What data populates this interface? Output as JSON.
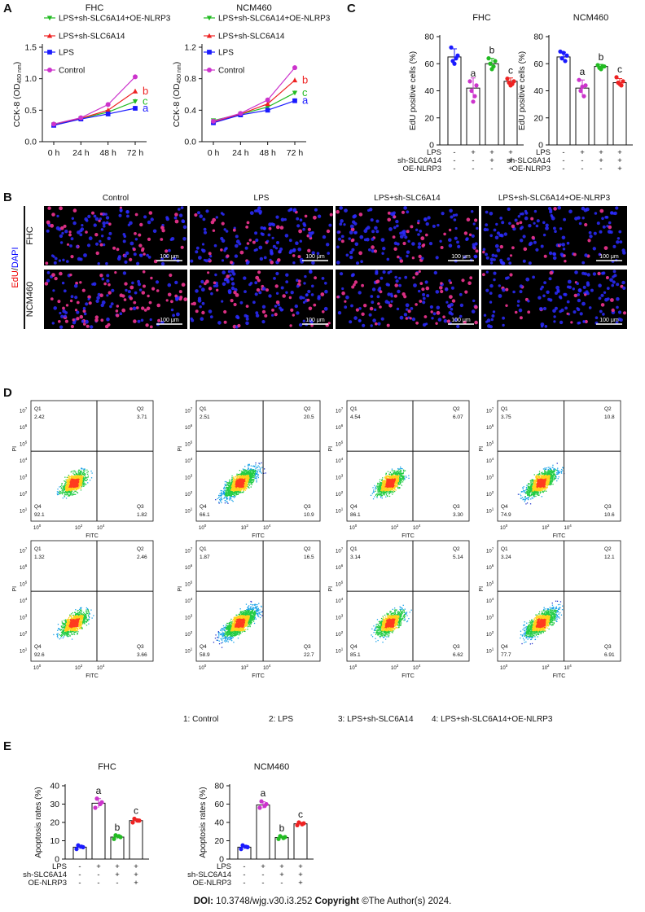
{
  "panel_labels": {
    "A": "A",
    "B": "B",
    "C": "C",
    "D": "D",
    "E": "E"
  },
  "doi": {
    "label": "DOI:",
    "value": "10.3748/wjg.v30.i3.252",
    "copyright_label": "Copyright",
    "copyright_text": "©The Author(s) 2024."
  },
  "colors": {
    "control": "#cc33cc",
    "lps": "#1a1aff",
    "sh": "#ee2222",
    "oe": "#22bb22"
  },
  "chart_data": [
    {
      "type": "line",
      "panel": "A",
      "title": "FHC",
      "ylabel": "CCK-8 (OD",
      "ylabel_sub": "450 nm",
      "ylabel_close": ")",
      "categories": [
        "0 h",
        "24 h",
        "48 h",
        "72 h"
      ],
      "ylim": [
        0,
        1.5
      ],
      "yticks": [
        "0.0",
        "0.5",
        "1.0",
        "1.5"
      ],
      "series": [
        {
          "name": "LPS+sh-SLC6A14+OE-NLRP3",
          "color": "#22bb22",
          "marker": "tri-down",
          "values": [
            0.27,
            0.37,
            0.47,
            0.64
          ],
          "letter": "c"
        },
        {
          "name": "LPS+sh-SLC6A14",
          "color": "#ee2222",
          "marker": "tri-up",
          "values": [
            0.26,
            0.37,
            0.5,
            0.8
          ],
          "letter": "b"
        },
        {
          "name": "LPS",
          "color": "#1a1aff",
          "marker": "square",
          "values": [
            0.26,
            0.36,
            0.44,
            0.53
          ],
          "letter": "a"
        },
        {
          "name": "Control",
          "color": "#cc33cc",
          "marker": "circle",
          "values": [
            0.28,
            0.38,
            0.59,
            1.03
          ],
          "letter": ""
        }
      ]
    },
    {
      "type": "line",
      "panel": "A",
      "title": "NCM460",
      "ylabel": "CCK-8 (OD",
      "ylabel_sub": "450 nm",
      "ylabel_close": ")",
      "categories": [
        "0 h",
        "24 h",
        "48 h",
        "72 h"
      ],
      "ylim": [
        0,
        1.2
      ],
      "yticks": [
        "0.0",
        "0.4",
        "0.8",
        "1.2"
      ],
      "series": [
        {
          "name": "LPS+sh-SLC6A14+OE-NLRP3",
          "color": "#22bb22",
          "marker": "tri-down",
          "values": [
            0.27,
            0.35,
            0.44,
            0.62
          ],
          "letter": "c"
        },
        {
          "name": "LPS+sh-SLC6A14",
          "color": "#ee2222",
          "marker": "tri-up",
          "values": [
            0.25,
            0.35,
            0.48,
            0.78
          ],
          "letter": "b"
        },
        {
          "name": "LPS",
          "color": "#1a1aff",
          "marker": "square",
          "values": [
            0.24,
            0.34,
            0.4,
            0.52
          ],
          "letter": "a"
        },
        {
          "name": "Control",
          "color": "#cc33cc",
          "marker": "circle",
          "values": [
            0.26,
            0.36,
            0.53,
            0.94
          ],
          "letter": ""
        }
      ]
    },
    {
      "type": "bar",
      "panel": "C",
      "title": "FHC",
      "ylabel": "EdU positive cells (%)",
      "ylim": [
        0,
        80
      ],
      "yticks": [
        "0",
        "20",
        "40",
        "60",
        "80"
      ],
      "values": [
        65,
        42,
        60,
        47
      ],
      "letters": [
        "",
        "a",
        "b",
        "c"
      ],
      "points": [
        [
          72,
          66,
          62,
          64,
          60
        ],
        [
          47,
          44,
          40,
          36,
          32
        ],
        [
          64,
          62,
          60,
          58,
          56
        ],
        [
          49,
          47,
          46,
          45,
          44
        ]
      ],
      "colors": [
        "#1a1aff",
        "#cc33cc",
        "#22bb22",
        "#ee2222"
      ],
      "conditions": [
        {
          "label": "LPS",
          "signs": [
            "-",
            "+",
            "+",
            "+"
          ]
        },
        {
          "label": "sh-SLC6A14",
          "signs": [
            "-",
            "-",
            "+",
            "+"
          ]
        },
        {
          "label": "OE-NLRP3",
          "signs": [
            "-",
            "-",
            "-",
            "+"
          ]
        }
      ]
    },
    {
      "type": "bar",
      "panel": "C",
      "title": "NCM460",
      "ylabel": "EdU positive cells (%)",
      "ylim": [
        0,
        80
      ],
      "yticks": [
        "0",
        "20",
        "40",
        "60",
        "80"
      ],
      "values": [
        65,
        42,
        58,
        46
      ],
      "letters": [
        "",
        "a",
        "b",
        "c"
      ],
      "points": [
        [
          69,
          66,
          64,
          62,
          68
        ],
        [
          48,
          44,
          40,
          36,
          43
        ],
        [
          59,
          58,
          57,
          58,
          56
        ],
        [
          50,
          47,
          46,
          44,
          45
        ]
      ],
      "colors": [
        "#1a1aff",
        "#cc33cc",
        "#22bb22",
        "#ee2222"
      ],
      "conditions": [
        {
          "label": "LPS",
          "signs": [
            "-",
            "+",
            "+",
            "+"
          ]
        },
        {
          "label": "sh-SLC6A14",
          "signs": [
            "-",
            "-",
            "+",
            "+"
          ]
        },
        {
          "label": "OE-NLRP3",
          "signs": [
            "-",
            "-",
            "-",
            "+"
          ]
        }
      ]
    },
    {
      "type": "bar",
      "panel": "E",
      "title": "FHC",
      "ylabel": "Apoptosis rates (%)",
      "ylim": [
        0,
        40
      ],
      "yticks": [
        "0",
        "10",
        "20",
        "30",
        "40"
      ],
      "values": [
        6.5,
        30.5,
        12,
        21
      ],
      "letters": [
        "",
        "a",
        "b",
        "c"
      ],
      "points": [
        [
          5.5,
          6.5,
          7.5,
          6.8
        ],
        [
          28,
          31,
          33,
          30
        ],
        [
          11,
          12,
          13,
          12.5
        ],
        [
          20,
          21,
          22,
          21
        ]
      ],
      "colors": [
        "#1a1aff",
        "#cc33cc",
        "#22bb22",
        "#ee2222"
      ],
      "conditions": [
        {
          "label": "LPS",
          "signs": [
            "-",
            "+",
            "+",
            "+"
          ]
        },
        {
          "label": "sh-SLC6A14",
          "signs": [
            "-",
            "-",
            "+",
            "+"
          ]
        },
        {
          "label": "OE-NLRP3",
          "signs": [
            "-",
            "-",
            "-",
            "+"
          ]
        }
      ]
    },
    {
      "type": "bar",
      "panel": "E",
      "title": "NCM460",
      "ylabel": "Apoptosis rates (%)",
      "ylim": [
        0,
        80
      ],
      "yticks": [
        "0",
        "20",
        "40",
        "60",
        "80"
      ],
      "values": [
        13,
        59,
        23.5,
        38.5
      ],
      "letters": [
        "",
        "a",
        "b",
        "c"
      ],
      "points": [
        [
          11,
          13,
          15,
          13.5
        ],
        [
          56,
          60,
          63,
          58
        ],
        [
          22,
          24,
          25,
          23
        ],
        [
          37,
          39,
          40,
          38
        ]
      ],
      "colors": [
        "#1a1aff",
        "#cc33cc",
        "#22bb22",
        "#ee2222"
      ],
      "conditions": [
        {
          "label": "LPS",
          "signs": [
            "-",
            "+",
            "+",
            "+"
          ]
        },
        {
          "label": "sh-SLC6A14",
          "signs": [
            "-",
            "-",
            "+",
            "+"
          ]
        },
        {
          "label": "OE-NLRP3",
          "signs": [
            "-",
            "-",
            "-",
            "+"
          ]
        }
      ]
    }
  ],
  "microscopy": {
    "panel": "B",
    "stain": {
      "part1": "EdU",
      "sep": "/",
      "part2": "DAPI"
    },
    "columns": [
      "Control",
      "LPS",
      "LPS+sh-SLC6A14",
      "LPS+sh-SLC6A14+OE-NLRP3"
    ],
    "rows": [
      "FHC",
      "NCM460"
    ],
    "scale_bar": "100 μm",
    "edu_density": [
      [
        0.35,
        0.28,
        0.25,
        0.15
      ],
      [
        0.45,
        0.3,
        0.35,
        0.2
      ]
    ]
  },
  "flow_cytometry": {
    "panel": "D",
    "xlabel": "FITC",
    "ylabel": "PI",
    "axis_ticks": [
      "10",
      "0",
      "1",
      "2",
      "3",
      "4",
      "5",
      "6",
      "7"
    ],
    "quadrants": [
      "Q1",
      "Q2",
      "Q3",
      "Q4"
    ],
    "plots": [
      [
        {
          "Q1": "2.42",
          "Q2": "3.71",
          "Q3": "1.82",
          "Q4": "92.1"
        },
        {
          "Q1": "2.51",
          "Q2": "20.5",
          "Q3": "10.9",
          "Q4": "66.1"
        },
        {
          "Q1": "4.54",
          "Q2": "6.07",
          "Q3": "3.30",
          "Q4": "86.1"
        },
        {
          "Q1": "3.75",
          "Q2": "10.8",
          "Q3": "10.6",
          "Q4": "74.9"
        }
      ],
      [
        {
          "Q1": "1.32",
          "Q2": "2.46",
          "Q3": "3.66",
          "Q4": "92.6"
        },
        {
          "Q1": "1.87",
          "Q2": "16.5",
          "Q3": "22.7",
          "Q4": "58.9"
        },
        {
          "Q1": "3.14",
          "Q2": "5.14",
          "Q3": "6.62",
          "Q4": "85.1"
        },
        {
          "Q1": "3.24",
          "Q2": "12.1",
          "Q3": "6.91",
          "Q4": "77.7"
        }
      ]
    ],
    "group_legend": [
      "1: Control",
      "2: LPS",
      "3: LPS+sh-SLC6A14",
      "4: LPS+sh-SLC6A14+OE-NLRP3"
    ]
  }
}
